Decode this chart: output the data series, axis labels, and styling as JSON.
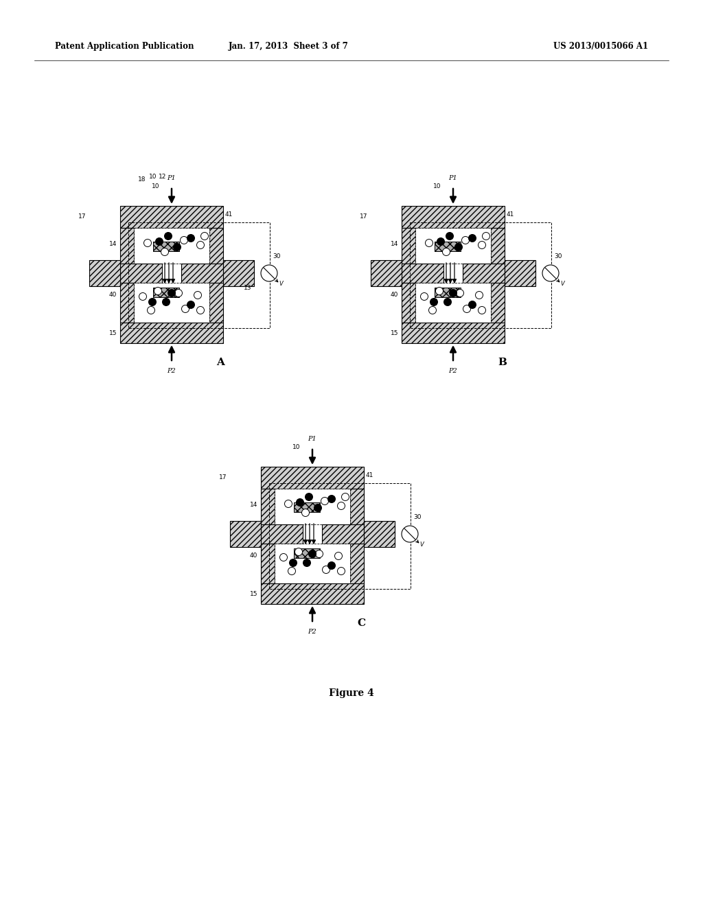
{
  "header_left": "Patent Application Publication",
  "header_mid": "Jan. 17, 2013  Sheet 3 of 7",
  "header_right": "US 2013/0015066 A1",
  "figure_label": "Figure 4",
  "bg_color": "#ffffff"
}
